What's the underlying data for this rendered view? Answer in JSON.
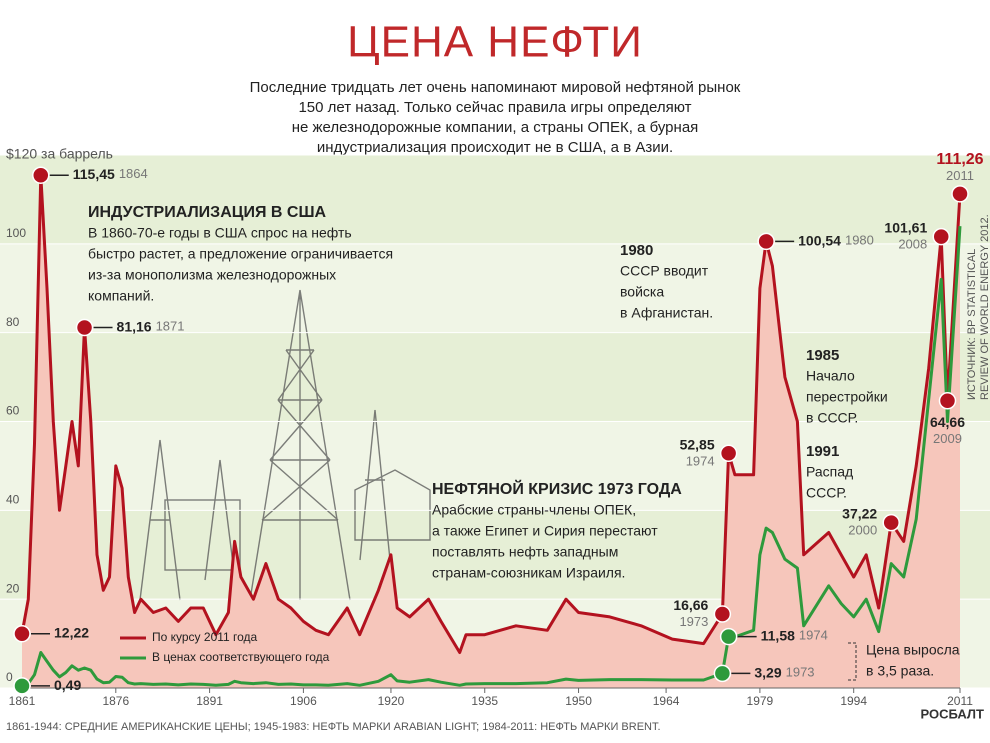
{
  "chart_data": {
    "type": "area-line",
    "title": "ЦЕНА НЕФТИ",
    "subtitle": [
      "Последние тридцать лет очень напоминают мировой нефтяной рынок",
      "150 лет назад. Только сейчас правила игры определяют",
      "не железнодорожные компании, а страны ОПЕК, а бурная",
      "индустриализация происходит не в США, а в Азии."
    ],
    "x": [
      1861,
      1862,
      1863,
      1864,
      1865,
      1866,
      1867,
      1868,
      1869,
      1870,
      1871,
      1872,
      1873,
      1874,
      1875,
      1876,
      1877,
      1878,
      1879,
      1880,
      1882,
      1884,
      1886,
      1888,
      1890,
      1892,
      1894,
      1895,
      1896,
      1898,
      1900,
      1902,
      1904,
      1906,
      1908,
      1910,
      1913,
      1915,
      1918,
      1920,
      1921,
      1923,
      1926,
      1928,
      1931,
      1932,
      1935,
      1940,
      1945,
      1948,
      1950,
      1955,
      1960,
      1965,
      1970,
      1973,
      1974,
      1975,
      1978,
      1979,
      1980,
      1981,
      1983,
      1985,
      1986,
      1990,
      1992,
      1994,
      1996,
      1998,
      2000,
      2002,
      2004,
      2006,
      2008,
      2009,
      2011
    ],
    "series": [
      {
        "name": "По курсу 2011 года",
        "color": "#b3121f",
        "fill": "#f6c6bb",
        "values": [
          12.22,
          20,
          55,
          115.45,
          90,
          60,
          40,
          50,
          60,
          50,
          81.16,
          60,
          30,
          22,
          25,
          50,
          45,
          25,
          17,
          20,
          17,
          18,
          15,
          18,
          18,
          12,
          17,
          33,
          25,
          20,
          28,
          20,
          18,
          15,
          13,
          12,
          18,
          12,
          22,
          30,
          18,
          16,
          20,
          15,
          8,
          12,
          12,
          14,
          13,
          20,
          17,
          16,
          14,
          11,
          10,
          16.66,
          52.85,
          48,
          48,
          90,
          100.54,
          95,
          70,
          60,
          30,
          35,
          30,
          25,
          30,
          18,
          37.22,
          33,
          50,
          72,
          101.61,
          64.66,
          111.26
        ],
        "value_labels": [
          "12,22",
          null,
          null,
          "115,45",
          null,
          null,
          null,
          null,
          null,
          null,
          "81,16",
          null,
          null,
          null,
          null,
          null,
          null,
          null,
          null,
          null,
          null,
          null,
          null,
          null,
          null,
          null,
          null,
          null,
          null,
          null,
          null,
          null,
          null,
          null,
          null,
          null,
          null,
          null,
          null,
          null,
          null,
          null,
          null,
          null,
          null,
          null,
          null,
          null,
          null,
          null,
          null,
          null,
          null,
          null,
          null,
          "16,66",
          "52,85",
          null,
          null,
          null,
          "100,54",
          null,
          null,
          null,
          null,
          null,
          null,
          null,
          null,
          null,
          "37,22",
          null,
          null,
          null,
          "101,61",
          "64,66",
          "111,26"
        ]
      },
      {
        "name": "В ценах соответствующего года",
        "color": "#2e9a3c",
        "values": [
          0.49,
          1,
          3,
          8,
          6,
          4,
          2.5,
          3.5,
          5,
          4,
          4.5,
          4,
          2,
          1.2,
          1.3,
          2.6,
          2.4,
          1.2,
          0.9,
          1,
          0.8,
          0.9,
          0.7,
          0.9,
          0.8,
          0.6,
          0.8,
          1.5,
          1.2,
          1,
          1.2,
          0.8,
          0.9,
          0.7,
          0.7,
          0.6,
          1,
          0.6,
          1.5,
          3,
          1.6,
          1.3,
          1.9,
          1.3,
          0.6,
          0.9,
          1,
          1,
          1.2,
          2,
          1.7,
          1.9,
          1.9,
          1.8,
          1.8,
          3.29,
          11.58,
          11.5,
          13,
          30,
          36,
          35,
          29,
          27,
          14,
          23,
          19,
          16,
          20,
          12.7,
          28,
          25,
          38,
          65,
          92,
          60,
          104
        ],
        "value_labels": [
          "0,49",
          null,
          null,
          null,
          null,
          null,
          null,
          null,
          null,
          null,
          null,
          null,
          null,
          null,
          null,
          null,
          null,
          null,
          null,
          null,
          null,
          null,
          null,
          null,
          null,
          null,
          null,
          null,
          null,
          null,
          null,
          null,
          null,
          null,
          null,
          null,
          null,
          null,
          null,
          null,
          null,
          null,
          null,
          null,
          null,
          null,
          null,
          null,
          null,
          null,
          null,
          null,
          null,
          null,
          null,
          "3,29",
          "11,58",
          null,
          null,
          null,
          null,
          null,
          null,
          null,
          null,
          null,
          null,
          null,
          null,
          null,
          null,
          null,
          null,
          null,
          null,
          null,
          null
        ]
      }
    ],
    "xlim": [
      1861,
      2011
    ],
    "xticks": [
      1861,
      1876,
      1891,
      1906,
      1920,
      1935,
      1950,
      1964,
      1979,
      1994,
      2011
    ],
    "ylim": [
      0,
      120
    ],
    "yticks": [
      0,
      20,
      40,
      60,
      80,
      100,
      {
        "value": 120,
        "label": "$120 за баррель"
      }
    ],
    "grid": true,
    "legend": "bottom-left",
    "annotations": [
      {
        "title": "ИНДУСТРИАЛИЗАЦИЯ В США",
        "lines": [
          "В 1860-70-е годы в США спрос на нефть",
          "быстро растет, а предложение ограничивается",
          "из-за монополизма железнодорожных",
          "компаний."
        ]
      },
      {
        "title": "1980",
        "lines": [
          "СССР вводит",
          "войска",
          "в Афганистан."
        ]
      },
      {
        "title": "1985",
        "lines": [
          "Начало",
          "перестройки",
          "в СССР."
        ]
      },
      {
        "title": "1991",
        "lines": [
          "Распад",
          "СССР."
        ]
      },
      {
        "title": "НЕФТЯНОЙ КРИЗИС 1973 ГОДА",
        "lines": [
          "Арабские страны-члены ОПЕК,",
          "а также Египет и Сирия перестают",
          "поставлять нефть западным",
          "странам-союзникам Израиля."
        ]
      },
      {
        "title": "Цена выросла",
        "lines": [
          "в 3,5 раза."
        ]
      }
    ],
    "source": [
      "ИСТОЧНИК: BP STATISTICAL",
      "REVIEW OF WORLD ENERGY 2012."
    ],
    "footnote": "1861-1944: СРЕДНИЕ АМЕРИКАНСКИЕ ЦЕНЫ; 1945-1983: НЕФТЬ МАРКИ ARABIAN LIGHT; 1984-2011: НЕФТЬ МАРКИ BRENT.",
    "watermark": "РОСБАЛТ"
  }
}
